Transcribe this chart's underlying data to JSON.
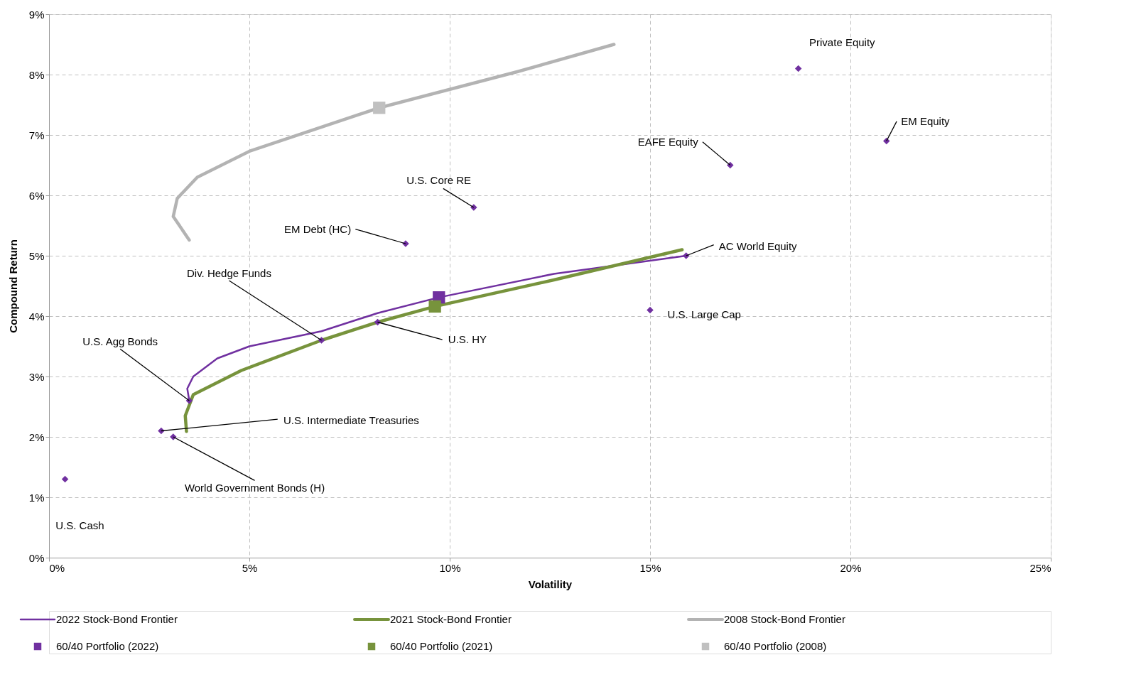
{
  "chart_data": {
    "type": "scatter",
    "xlabel": "Volatility",
    "ylabel": "Compound Return",
    "xlim": [
      0,
      25
    ],
    "ylim": [
      0,
      9
    ],
    "xticks": [
      {
        "value": 0,
        "label": "0%"
      },
      {
        "value": 5,
        "label": "5%"
      },
      {
        "value": 10,
        "label": "10%"
      },
      {
        "value": 15,
        "label": "15%"
      },
      {
        "value": 20,
        "label": "20%"
      },
      {
        "value": 25,
        "label": "25%"
      }
    ],
    "yticks": [
      {
        "value": 0,
        "label": "0%"
      },
      {
        "value": 1,
        "label": "1%"
      },
      {
        "value": 2,
        "label": "2%"
      },
      {
        "value": 3,
        "label": "3%"
      },
      {
        "value": 4,
        "label": "4%"
      },
      {
        "value": 5,
        "label": "5%"
      },
      {
        "value": 6,
        "label": "6%"
      },
      {
        "value": 7,
        "label": "7%"
      },
      {
        "value": 8,
        "label": "8%"
      },
      {
        "value": 9,
        "label": "9%"
      }
    ],
    "grid": true,
    "legend": "bottom",
    "series": [
      {
        "name": "2022 Stock-Bond Frontier",
        "type": "line",
        "color": "#7030a0",
        "x": [
          3.5,
          3.45,
          3.6,
          4.2,
          5.0,
          6.8,
          8.2,
          9.73,
          12.6,
          15.9
        ],
        "values": [
          2.6,
          2.8,
          3.0,
          3.3,
          3.5,
          3.75,
          4.05,
          4.31,
          4.7,
          5.0
        ]
      },
      {
        "name": "2021 Stock-Bond Frontier",
        "type": "line",
        "color": "#77933c",
        "x": [
          3.43,
          3.4,
          3.6,
          4.8,
          6.8,
          8.2,
          9.63,
          12.6,
          15.8
        ],
        "values": [
          2.09,
          2.35,
          2.7,
          3.1,
          3.6,
          3.9,
          4.16,
          4.6,
          5.1
        ]
      },
      {
        "name": "2008 Stock-Bond Frontier",
        "type": "line",
        "color": "#b3b3b3",
        "x": [
          3.5,
          3.1,
          3.2,
          3.7,
          5.0,
          8.24,
          11.7,
          14.1
        ],
        "values": [
          5.26,
          5.65,
          5.95,
          6.3,
          6.73,
          7.45,
          8.05,
          8.5
        ]
      },
      {
        "name": "60/40 Portfolio (2022)",
        "type": "scatter",
        "marker": "square",
        "color": "#7030a0",
        "x": [
          9.73
        ],
        "values": [
          4.31
        ]
      },
      {
        "name": "60/40 Portfolio (2021)",
        "type": "scatter",
        "marker": "square",
        "color": "#77933c",
        "x": [
          9.63
        ],
        "values": [
          4.16
        ]
      },
      {
        "name": "60/40 Portfolio (2008)",
        "type": "scatter",
        "marker": "square",
        "color": "#c0c0c0",
        "x": [
          8.24
        ],
        "values": [
          7.45
        ]
      },
      {
        "marker": "diamond",
        "color": "#7030a0",
        "x": [
          0.4,
          2.8,
          3.1,
          3.5,
          6.8,
          8.2,
          8.9,
          10.6,
          15.0,
          15.9,
          17.0,
          20.9,
          18.7
        ],
        "values": [
          1.3,
          2.1,
          2.0,
          2.6,
          3.6,
          3.9,
          5.2,
          5.8,
          4.1,
          5.0,
          6.5,
          6.9,
          8.1
        ]
      }
    ],
    "annotations": [
      "U.S. Cash",
      {
        "text": "U.S. Intermediate Treasuries",
        "x": 2.8,
        "y": 2.1
      },
      {
        "text": "World Government Bonds (H)",
        "x": 3.1,
        "y": 2.0
      },
      {
        "text": "U.S. Agg Bonds",
        "x": 3.5,
        "y": 2.6
      },
      {
        "text": "Div. Hedge Funds",
        "x": 6.8,
        "y": 3.6
      },
      {
        "text": "U.S. HY",
        "x": 8.2,
        "y": 3.9
      },
      {
        "text": "EM Debt (HC)",
        "x": 8.9,
        "y": 5.2
      },
      {
        "text": "U.S. Core RE",
        "x": 10.6,
        "y": 5.8
      },
      {
        "text": "U.S. Large Cap",
        "x": 15.0,
        "y": 4.1
      },
      {
        "text": "AC World Equity",
        "x": 15.9,
        "y": 5.0
      },
      {
        "text": "EAFE Equity",
        "x": 17.0,
        "y": 6.5
      },
      {
        "text": "EM Equity",
        "x": 20.9,
        "y": 6.9
      },
      {
        "text": "Private Equity",
        "x": 18.7,
        "y": 8.1
      }
    ]
  }
}
